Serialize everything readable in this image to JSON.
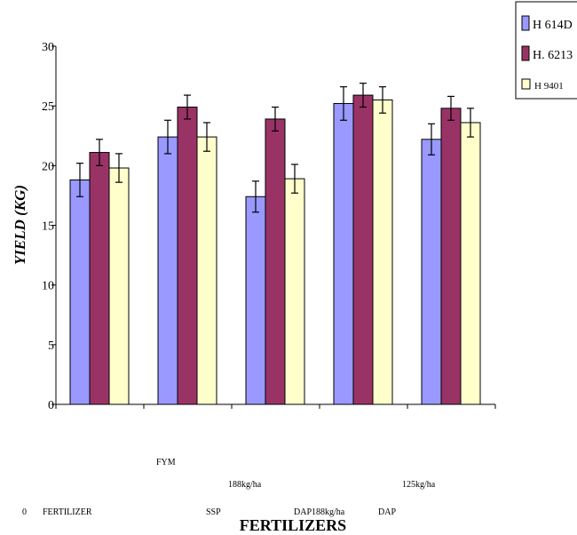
{
  "chart_data": {
    "type": "bar",
    "title": "",
    "xlabel": "FERTILIZERS",
    "ylabel": "YIELD (KG)",
    "ylim": [
      0,
      30
    ],
    "yticks": [
      0,
      5,
      10,
      15,
      20,
      25,
      30
    ],
    "categories": [
      "0 FERTILIZER",
      "FYM SSP",
      "188kg/ha DAP188kg/ha",
      "125kg/ha DAP",
      ""
    ],
    "category_texts": [
      "FYM",
      "188kg/ha",
      "125kg/ha",
      "0",
      "FERTILIZER",
      "SSP",
      "DAP188kg/ha",
      "DAP"
    ],
    "series": [
      {
        "name": "H 614D",
        "color": "#9999ff",
        "values": [
          18.8,
          22.4,
          17.4,
          25.2,
          22.2
        ],
        "errors": [
          1.4,
          1.4,
          1.3,
          1.4,
          1.3
        ]
      },
      {
        "name": "H. 6213",
        "color": "#993366",
        "values": [
          21.1,
          24.9,
          23.9,
          25.9,
          24.8
        ],
        "errors": [
          1.1,
          1.0,
          1.0,
          1.0,
          1.0
        ]
      },
      {
        "name": "H 9401",
        "color": "#ffffcc",
        "values": [
          19.8,
          22.4,
          18.9,
          25.5,
          23.6
        ],
        "errors": [
          1.2,
          1.2,
          1.2,
          1.1,
          1.2
        ]
      }
    ],
    "grid": false,
    "legend": "top-right"
  }
}
